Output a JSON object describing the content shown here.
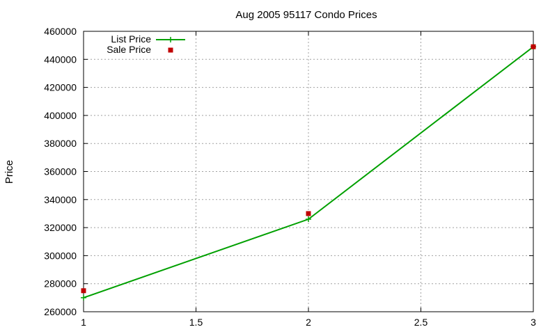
{
  "chart_data": {
    "type": "line",
    "title": "Aug 2005 95117 Condo Prices",
    "xlabel": "",
    "ylabel": "Price",
    "xlim": [
      1,
      3
    ],
    "ylim": [
      260000,
      460000
    ],
    "x_ticks": [
      1,
      1.5,
      2,
      2.5,
      3
    ],
    "x_tick_labels": [
      "1",
      "1.5",
      "2",
      "2.5",
      "3"
    ],
    "y_ticks": [
      260000,
      280000,
      300000,
      320000,
      340000,
      360000,
      380000,
      400000,
      420000,
      440000,
      460000
    ],
    "y_tick_labels": [
      "260000",
      "280000",
      "300000",
      "320000",
      "340000",
      "360000",
      "380000",
      "400000",
      "420000",
      "440000",
      "460000"
    ],
    "grid": true,
    "legend_position": "top-left",
    "series": [
      {
        "name": "List Price",
        "style": "line-plus-marker",
        "color": "#00a000",
        "x": [
          1,
          2,
          3
        ],
        "y": [
          270000,
          326000,
          449000
        ]
      },
      {
        "name": "Sale Price",
        "style": "square-marker",
        "color": "#c00000",
        "x": [
          1,
          2,
          3
        ],
        "y": [
          275000,
          330000,
          449000
        ]
      }
    ]
  }
}
